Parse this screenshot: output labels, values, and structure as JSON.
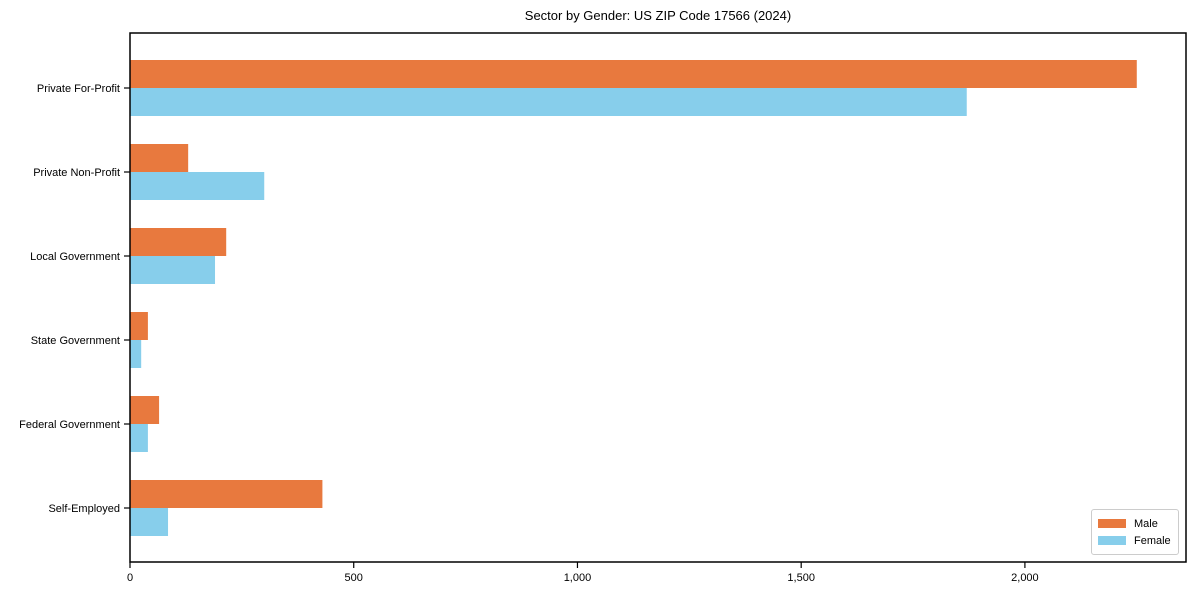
{
  "title": "Sector by Gender: US ZIP Code 17566 (2024)",
  "colors": {
    "male": "#e8793e",
    "female": "#87ceeb",
    "axis": "#000000",
    "legend_border": "#cccccc",
    "background": "#ffffff"
  },
  "chart_data": {
    "type": "bar",
    "orientation": "horizontal",
    "title": "Sector by Gender: US ZIP Code 17566 (2024)",
    "categories": [
      "Private For-Profit",
      "Private Non-Profit",
      "Local Government",
      "State Government",
      "Federal Government",
      "Self-Employed"
    ],
    "series": [
      {
        "name": "Male",
        "color": "#e8793e",
        "values": [
          2250,
          130,
          215,
          40,
          65,
          430
        ]
      },
      {
        "name": "Female",
        "color": "#87ceeb",
        "values": [
          1870,
          300,
          190,
          25,
          40,
          85
        ]
      }
    ],
    "xlabel": "",
    "ylabel": "",
    "xlim": [
      0,
      2360
    ],
    "xticks": [
      0,
      500,
      1000,
      1500,
      2000
    ],
    "xtick_labels": [
      "0",
      "500",
      "1,000",
      "1,500",
      "2,000"
    ],
    "grid": false,
    "legend_position": "lower right"
  }
}
